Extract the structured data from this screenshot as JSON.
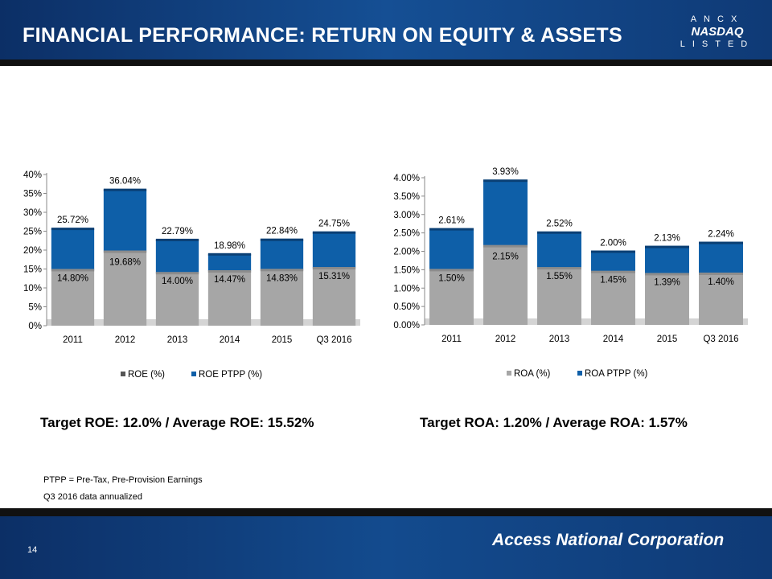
{
  "title": "FINANCIAL PERFORMANCE: RETURN ON EQUITY & ASSETS",
  "logo": {
    "top": "ANCX",
    "mid": "NASDAQ",
    "bottom": "LISTED"
  },
  "colors": {
    "gray": "#a6a6a6",
    "blue": "#0e5fa8",
    "header": "#0f3a76"
  },
  "chart_data": [
    {
      "type": "bar",
      "stacked": true,
      "title": "",
      "categories": [
        "2011",
        "2012",
        "2013",
        "2014",
        "2015",
        "Q3 2016"
      ],
      "series": [
        {
          "name": "ROE (%)",
          "values": [
            14.8,
            19.68,
            14.0,
            14.47,
            14.83,
            15.31
          ],
          "labels": [
            "14.80%",
            "19.68%",
            "14.00%",
            "14.47%",
            "14.83%",
            "15.31%"
          ]
        },
        {
          "name": "ROE PTPP (%)",
          "totals": [
            25.72,
            36.04,
            22.79,
            18.98,
            22.84,
            24.75
          ],
          "labels": [
            "25.72%",
            "36.04%",
            "22.79%",
            "18.98%",
            "22.84%",
            "24.75%"
          ]
        }
      ],
      "yticks": [
        "0%",
        "5%",
        "10%",
        "15%",
        "20%",
        "25%",
        "30%",
        "35%",
        "40%"
      ],
      "ylim": [
        0,
        40
      ],
      "legend": "bottom"
    },
    {
      "type": "bar",
      "stacked": true,
      "title": "",
      "categories": [
        "2011",
        "2012",
        "2013",
        "2014",
        "2015",
        "Q3 2016"
      ],
      "series": [
        {
          "name": "ROA (%)",
          "values": [
            1.5,
            2.15,
            1.55,
            1.45,
            1.39,
            1.4
          ],
          "labels": [
            "1.50%",
            "2.15%",
            "1.55%",
            "1.45%",
            "1.39%",
            "1.40%"
          ]
        },
        {
          "name": "ROA PTPP (%)",
          "totals": [
            2.61,
            3.93,
            2.52,
            2.0,
            2.13,
            2.24
          ],
          "labels": [
            "2.61%",
            "3.93%",
            "2.52%",
            "2.00%",
            "2.13%",
            "2.24%"
          ]
        }
      ],
      "yticks": [
        "0.00%",
        "0.50%",
        "1.00%",
        "1.50%",
        "2.00%",
        "2.50%",
        "3.00%",
        "3.50%",
        "4.00%"
      ],
      "ylim": [
        0,
        4
      ],
      "legend": "bottom"
    }
  ],
  "targets": {
    "roe": "Target ROE: 12.0% / Average ROE: 15.52%",
    "roa": "Target ROA: 1.20% / Average ROA: 1.57%"
  },
  "notes": [
    "PTPP = Pre-Tax, Pre-Provision Earnings",
    "Q3 2016 data annualized"
  ],
  "page_number": "14",
  "company": "Access National Corporation"
}
